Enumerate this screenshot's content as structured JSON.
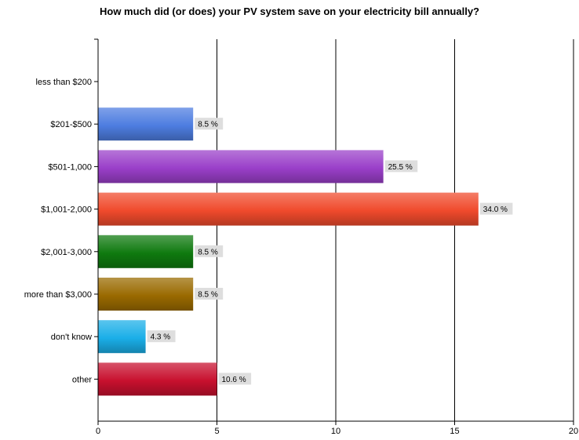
{
  "chart_data": {
    "type": "bar",
    "orientation": "horizontal",
    "title": "How much did (or does) your PV system save on your electricity bill annually?",
    "categories": [
      "less than $200",
      "$201-$500",
      "$501-1,000",
      "$1,001-2,000",
      "$2,001-3,000",
      "more than $3,000",
      "don't know",
      "other"
    ],
    "values": [
      0,
      4,
      12,
      16,
      4,
      4,
      2,
      5
    ],
    "data_labels": [
      "",
      "8.5 %",
      "25.5 %",
      "34.0 %",
      "8.5 %",
      "8.5 %",
      "4.3 %",
      "10.6 %"
    ],
    "colors": [
      "#cccccc",
      "#4d7de0",
      "#9a3fc9",
      "#f04a2c",
      "#0f7a0f",
      "#9a6a00",
      "#1aaee8",
      "#c8102e"
    ],
    "xlim": [
      0,
      20
    ],
    "xticks": [
      0,
      5,
      10,
      15,
      20
    ],
    "xlabel": "",
    "ylabel": "",
    "grid": "vertical",
    "legend": "none"
  }
}
